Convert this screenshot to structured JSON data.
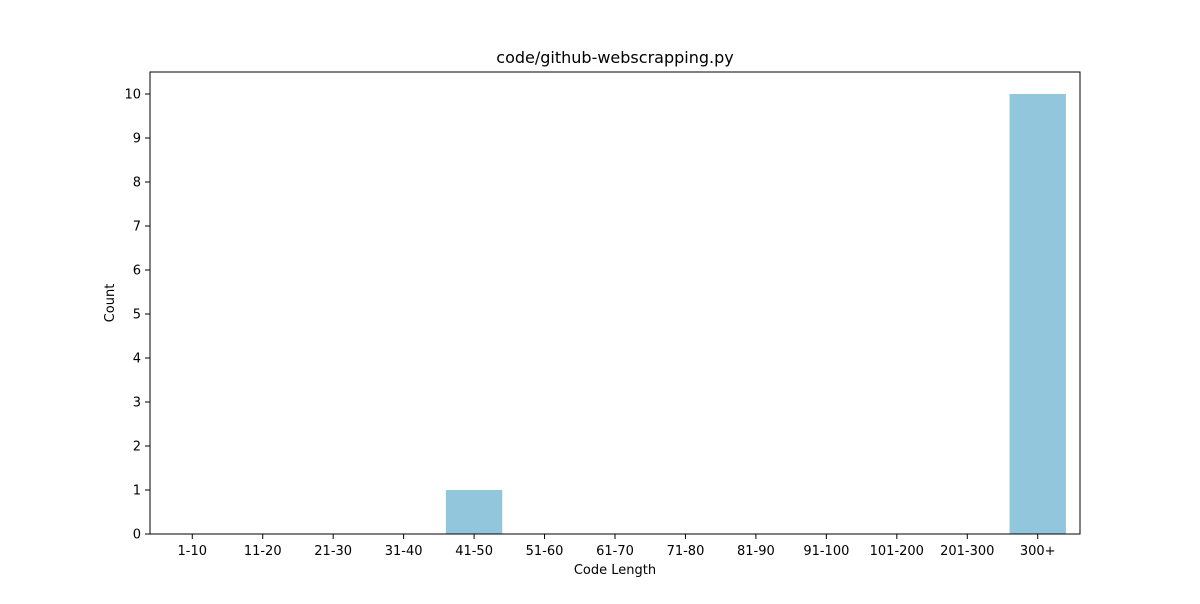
{
  "chart_data": {
    "type": "bar",
    "title": "code/github-webscrapping.py",
    "xlabel": "Code Length",
    "ylabel": "Count",
    "categories": [
      "1-10",
      "11-20",
      "21-30",
      "31-40",
      "41-50",
      "51-60",
      "61-70",
      "71-80",
      "81-90",
      "91-100",
      "101-200",
      "201-300",
      "300+"
    ],
    "values": [
      0,
      0,
      0,
      0,
      1,
      0,
      0,
      0,
      0,
      0,
      0,
      0,
      10
    ],
    "ylim": [
      0,
      10.5
    ],
    "yticks": [
      0,
      1,
      2,
      3,
      4,
      5,
      6,
      7,
      8,
      9,
      10
    ],
    "bar_color": "#92c6dc",
    "grid": false,
    "legend": "none"
  }
}
